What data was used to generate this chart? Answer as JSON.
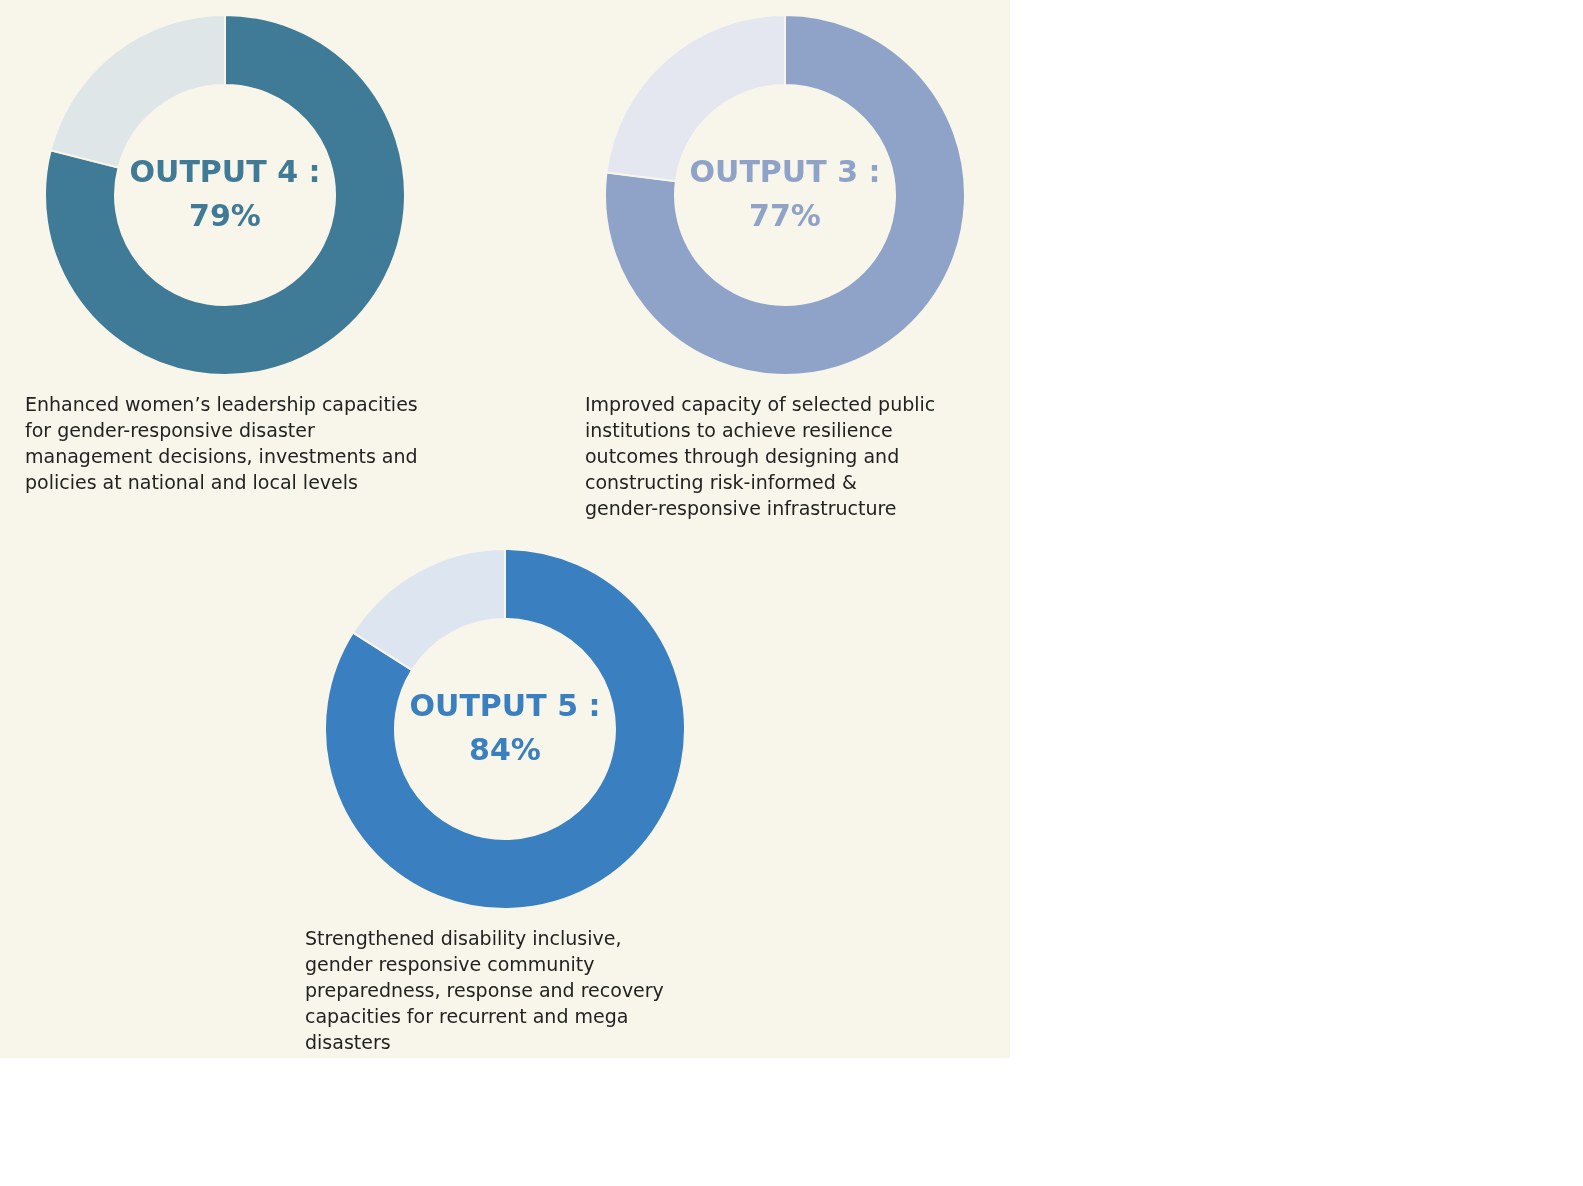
{
  "chart_data": [
    {
      "type": "donut",
      "categories": [
        null,
        null
      ],
      "values": [
        79,
        21
      ],
      "colors": [
        "#3f7a96",
        "#dfe6e8"
      ],
      "value_labels": [
        "79%",
        null
      ],
      "annotations": [
        "OUTPUT 4 :",
        "Enhanced women’s leadership capacities for gender-responsive disaster management decisions, investments and policies at national and local levels"
      ]
    },
    {
      "type": "donut",
      "categories": [
        null,
        null
      ],
      "values": [
        77,
        23
      ],
      "colors": [
        "#8fa3c8",
        "#e4e7ef"
      ],
      "value_labels": [
        "77%",
        null
      ],
      "annotations": [
        "OUTPUT 3 :",
        "Improved capacity of selected public institutions to achieve resilience outcomes through designing and constructing risk-informed & gender-responsive infrastructure"
      ]
    },
    {
      "type": "donut",
      "categories": [
        null,
        null
      ],
      "values": [
        84,
        16
      ],
      "colors": [
        "#3a7fbf",
        "#dde6f0"
      ],
      "value_labels": [
        "84%",
        null
      ],
      "annotations": [
        "OUTPUT 5 :",
        "Strengthened disability inclusive, gender responsive community preparedness, response and recovery capacities for recurrent and mega disasters"
      ]
    }
  ]
}
